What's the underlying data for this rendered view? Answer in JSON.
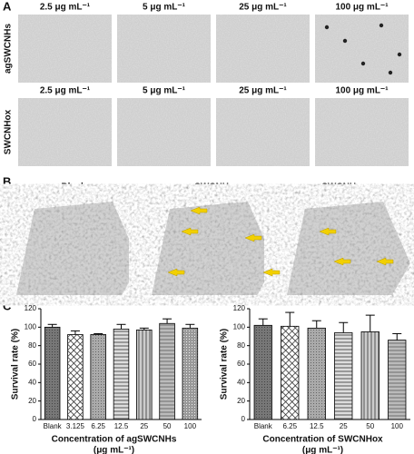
{
  "panel_a": {
    "label": "A",
    "rows": [
      {
        "name": "agSWCNHs",
        "image_labels": [
          "2.5 μg mL⁻¹",
          "5 μg mL⁻¹",
          "25 μg mL⁻¹",
          "100 μg mL⁻¹"
        ]
      },
      {
        "name": "SWCNHox",
        "image_labels": [
          "2.5 μg mL⁻¹",
          "5 μg mL⁻¹",
          "25 μg mL⁻¹",
          "100 μg mL⁻¹"
        ]
      }
    ]
  },
  "panel_b": {
    "label": "B",
    "images": [
      "Blank",
      "agSWCNHs",
      "SWCNHox"
    ]
  },
  "panel_c": {
    "label": "C"
  },
  "chart_data": [
    {
      "type": "bar",
      "ylabel": "Survival rate (%)",
      "xlabel": "Concentration of agSWCNHs",
      "xlabel_unit": "(μg mL⁻¹)",
      "categories": [
        "Blank",
        "3.125",
        "6.25",
        "12.5",
        "25",
        "50",
        "100"
      ],
      "values": [
        100,
        92,
        92,
        98,
        97,
        104,
        99
      ],
      "errors": [
        3,
        4,
        1,
        5,
        2,
        5,
        4
      ],
      "ylim": [
        0,
        120
      ],
      "yticks": [
        0,
        20,
        40,
        60,
        80,
        100,
        120
      ]
    },
    {
      "type": "bar",
      "ylabel": "Survival rate (%)",
      "xlabel": "Concentration of SWCNHox",
      "xlabel_unit": "(μg mL⁻¹)",
      "categories": [
        "Blank",
        "6.25",
        "12.5",
        "25",
        "50",
        "100"
      ],
      "values": [
        102,
        101,
        99,
        94,
        95,
        86
      ],
      "errors": [
        7,
        15,
        8,
        11,
        18,
        7
      ],
      "ylim": [
        0,
        120
      ],
      "yticks": [
        0,
        20,
        40,
        60,
        80,
        100,
        120
      ]
    }
  ]
}
